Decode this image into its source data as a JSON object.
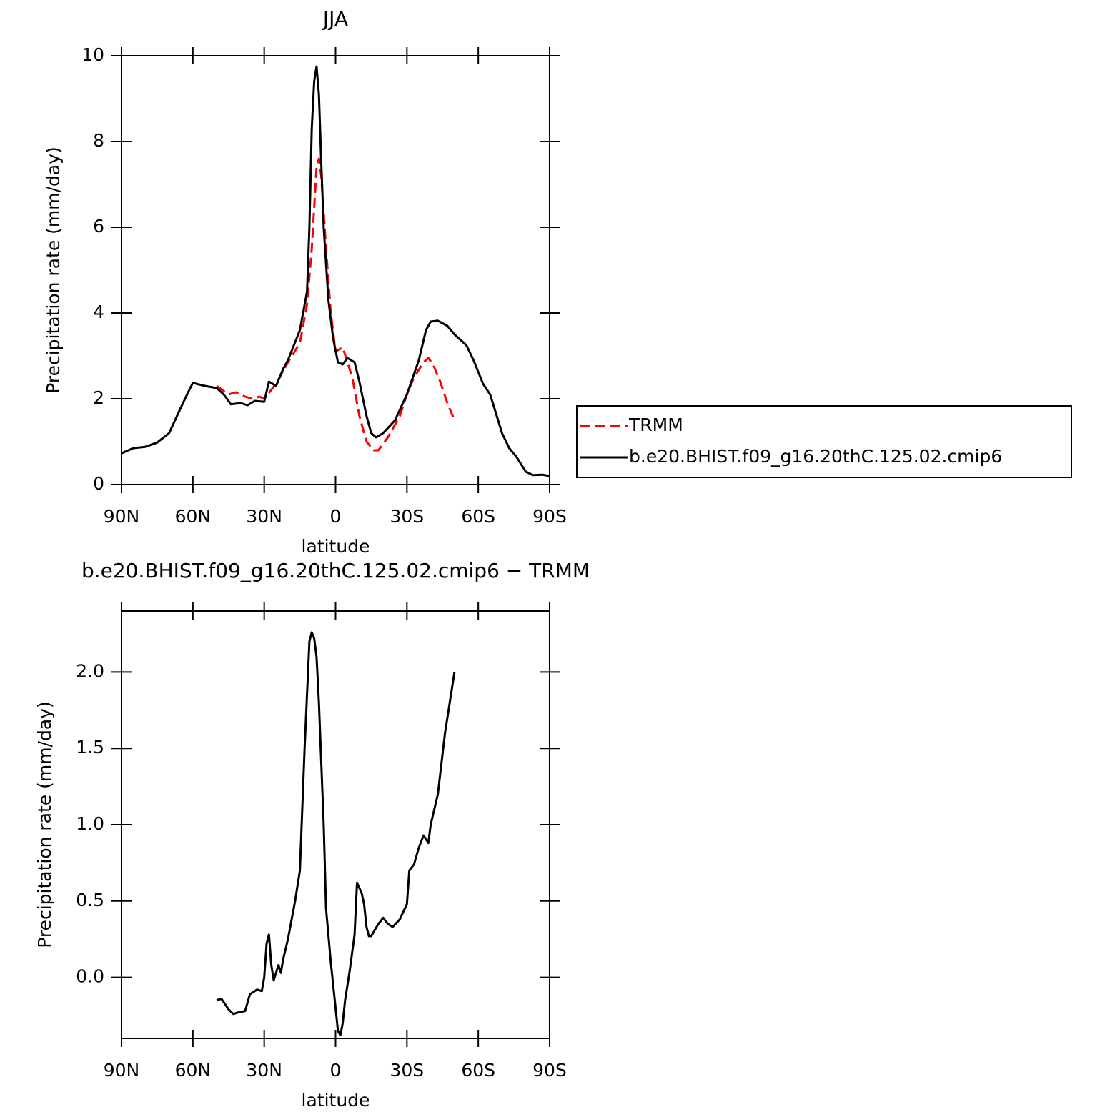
{
  "chart_data": [
    {
      "type": "line",
      "title": "JJA",
      "x_label": "latitude",
      "y_label": "Precipitation rate (mm/day)",
      "xlim": [
        90,
        -90
      ],
      "xticks": [
        {
          "value": 90,
          "label": "90N"
        },
        {
          "value": 60,
          "label": "60N"
        },
        {
          "value": 30,
          "label": "30N"
        },
        0,
        {
          "value": -30,
          "label": "30S"
        },
        {
          "value": -60,
          "label": "60S"
        },
        {
          "value": -90,
          "label": "90S"
        }
      ],
      "ylim": [
        0,
        10
      ],
      "yticks": [
        0,
        2,
        4,
        6,
        8,
        10
      ],
      "legend": "right",
      "series": [
        {
          "name": "TRMM",
          "color": "#ff0000",
          "dash": "dashed",
          "x": [
            50,
            45,
            42,
            38,
            35,
            32,
            30,
            25,
            20,
            15,
            12,
            10,
            8,
            7,
            6,
            4,
            2,
            0,
            -3,
            -7,
            -10,
            -13,
            -16,
            -18,
            -22,
            -27,
            -30,
            -33,
            -37,
            -39,
            -41,
            -44,
            -47,
            -50
          ],
          "values": [
            2.3,
            2.1,
            2.15,
            2.05,
            2.0,
            2.05,
            2.0,
            2.35,
            2.85,
            3.3,
            4.2,
            5.5,
            7.4,
            7.6,
            7.2,
            5.5,
            4.0,
            3.1,
            3.2,
            2.5,
            1.6,
            1.0,
            0.8,
            0.8,
            1.1,
            1.6,
            2.1,
            2.5,
            2.85,
            2.95,
            2.8,
            2.4,
            1.9,
            1.5
          ]
        },
        {
          "name": "b.e20.BHIST.f09_g16.20thC.125.02.cmip6",
          "color": "#000000",
          "dash": "solid",
          "x": [
            90,
            85,
            80,
            75,
            70,
            65,
            62,
            60,
            55,
            50,
            47,
            44,
            40,
            37,
            34,
            30,
            28,
            25,
            22,
            20,
            15,
            14,
            12,
            11,
            10,
            9,
            8,
            7,
            6,
            5,
            3,
            1,
            -1,
            -3,
            -5,
            -8,
            -10,
            -13,
            -15,
            -17,
            -20,
            -25,
            -30,
            -35,
            -38,
            -40,
            -43,
            -47,
            -50,
            -55,
            -58,
            -62,
            -65,
            -70,
            -73,
            -76,
            -80,
            -83,
            -87,
            -90
          ],
          "values": [
            0.73,
            0.85,
            0.88,
            0.98,
            1.2,
            1.8,
            2.15,
            2.37,
            2.3,
            2.25,
            2.1,
            1.87,
            1.9,
            1.85,
            1.95,
            1.93,
            2.4,
            2.3,
            2.7,
            2.9,
            3.6,
            3.9,
            4.5,
            6.0,
            8.3,
            9.4,
            9.75,
            9.1,
            7.5,
            6.0,
            4.3,
            3.4,
            2.85,
            2.8,
            2.95,
            2.85,
            2.4,
            1.6,
            1.2,
            1.1,
            1.2,
            1.5,
            2.1,
            2.9,
            3.6,
            3.8,
            3.82,
            3.7,
            3.5,
            3.25,
            2.9,
            2.35,
            2.1,
            1.2,
            0.85,
            0.65,
            0.3,
            0.22,
            0.23,
            0.2
          ]
        }
      ]
    },
    {
      "type": "line",
      "title": "b.e20.BHIST.f09_g16.20thC.125.02.cmip6 − TRMM",
      "x_label": "latitude",
      "y_label": "Precipitation rate (mm/day)",
      "xlim": [
        90,
        -90
      ],
      "xticks": [
        {
          "value": 90,
          "label": "90N"
        },
        {
          "value": 60,
          "label": "60N"
        },
        {
          "value": 30,
          "label": "30N"
        },
        0,
        {
          "value": -30,
          "label": "30S"
        },
        {
          "value": -60,
          "label": "60S"
        },
        {
          "value": -90,
          "label": "90S"
        }
      ],
      "ylim": [
        -0.4,
        2.4
      ],
      "yticks": [
        {
          "value": 0,
          "label": "0.0"
        },
        0.5,
        {
          "value": 1,
          "label": "1.0"
        },
        1.5,
        {
          "value": 2,
          "label": "2.0"
        }
      ],
      "series": [
        {
          "color": "#000000",
          "dash": "solid",
          "x": [
            50,
            48,
            45,
            43,
            41,
            38,
            36,
            33,
            31,
            30,
            29,
            28,
            27,
            26,
            24,
            23,
            22,
            20,
            17,
            15,
            13,
            11,
            10,
            9,
            8,
            7,
            5,
            4,
            2,
            0,
            -1,
            -2,
            -3,
            -4,
            -6,
            -8,
            -9,
            -11,
            -12,
            -13,
            -14,
            -15,
            -18,
            -20,
            -22,
            -24,
            -27,
            -30,
            -31,
            -33,
            -35,
            -37,
            -39,
            -40,
            -43,
            -46,
            -50
          ],
          "values": [
            -0.15,
            -0.14,
            -0.21,
            -0.24,
            -0.23,
            -0.22,
            -0.11,
            -0.08,
            -0.09,
            0.0,
            0.22,
            0.28,
            0.08,
            -0.02,
            0.08,
            0.03,
            0.12,
            0.25,
            0.5,
            0.7,
            1.5,
            2.2,
            2.26,
            2.22,
            2.1,
            1.8,
            1.0,
            0.45,
            0.1,
            -0.2,
            -0.35,
            -0.38,
            -0.3,
            -0.15,
            0.05,
            0.28,
            0.62,
            0.55,
            0.48,
            0.33,
            0.27,
            0.27,
            0.35,
            0.39,
            0.35,
            0.33,
            0.38,
            0.48,
            0.7,
            0.74,
            0.85,
            0.93,
            0.88,
            1.0,
            1.2,
            1.6,
            2.0
          ]
        }
      ]
    }
  ]
}
